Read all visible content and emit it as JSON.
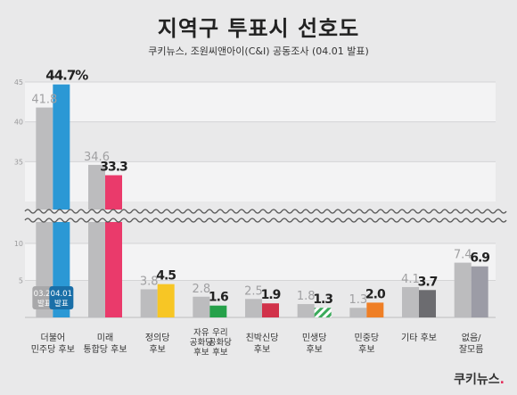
{
  "header": {
    "title": "지역구 투표시 선호도",
    "subtitle": "쿠키뉴스, 조원씨앤아이(C&I) 공동조사 (04.01 발표)"
  },
  "brand": {
    "name": "쿠키뉴스"
  },
  "chart_data": {
    "type": "bar",
    "title": "지역구 투표시 선호도",
    "yticks_upper": [
      35,
      40,
      45
    ],
    "yticks_lower": [
      5,
      10
    ],
    "axis_break": true,
    "grid": true,
    "series": [
      {
        "name": "03.26 발표",
        "color": "#bcbcbe"
      },
      {
        "name": "04.01 발표"
      }
    ],
    "categories": [
      {
        "label": [
          "더불어",
          "민주당 후보"
        ],
        "prev": 41.8,
        "curr": 44.7,
        "prev_label": "41.8",
        "curr_label": "44.7%",
        "color": "#2b98d5"
      },
      {
        "label": [
          "미래",
          "통합당 후보"
        ],
        "prev": 34.6,
        "curr": 33.3,
        "prev_label": "34.6",
        "curr_label": "33.3",
        "color": "#ea3a6b"
      },
      {
        "label": [
          "정의당",
          "후보"
        ],
        "prev": 3.8,
        "curr": 4.5,
        "prev_label": "3.8",
        "curr_label": "4.5",
        "color": "#f7c625"
      },
      {
        "label": [
          "자유",
          "공화당",
          "후보"
        ],
        "label_right": [
          "우리",
          "공화당",
          "후보"
        ],
        "prev": 2.8,
        "curr": 1.6,
        "prev_label": "2.8",
        "curr_label": "1.6",
        "color": "#26a14a"
      },
      {
        "label": [
          "친박신당",
          "후보"
        ],
        "prev": 2.5,
        "curr": 1.9,
        "prev_label": "2.5",
        "curr_label": "1.9",
        "color": "#d1324a"
      },
      {
        "label": [
          "민생당",
          "후보"
        ],
        "prev": 1.8,
        "curr": 1.3,
        "prev_label": "1.8",
        "curr_label": "1.3",
        "color": "#3aaa5a",
        "striped": true
      },
      {
        "label": [
          "민중당",
          "후보"
        ],
        "prev": 1.3,
        "curr": 2.0,
        "prev_label": "1.3",
        "curr_label": "2.0",
        "color": "#ef7f26"
      },
      {
        "label": [
          "기타 후보"
        ],
        "prev": 4.1,
        "curr": 3.7,
        "prev_label": "4.1",
        "curr_label": "3.7",
        "color": "#6c6c70"
      },
      {
        "label": [
          "없음/",
          "잘모름"
        ],
        "prev": 7.4,
        "curr": 6.9,
        "prev_label": "7.4",
        "curr_label": "6.9",
        "color": "#9c9ca6"
      }
    ]
  }
}
